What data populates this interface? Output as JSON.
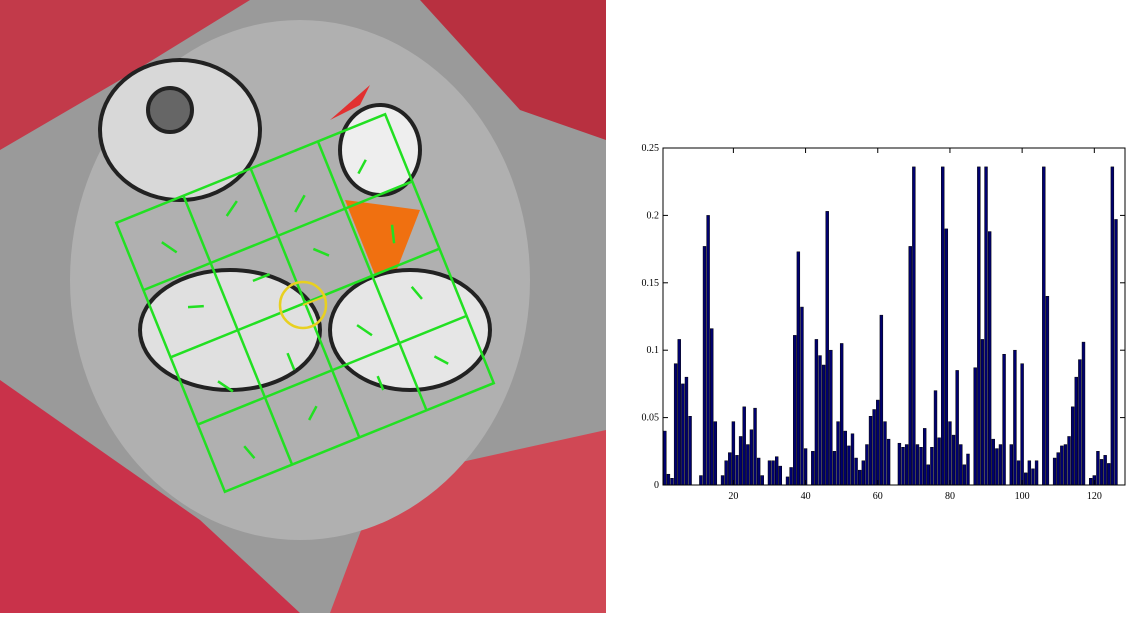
{
  "chart_data": {
    "type": "bar",
    "x": [
      1,
      2,
      3,
      4,
      5,
      6,
      7,
      8,
      9,
      10,
      11,
      12,
      13,
      14,
      15,
      16,
      17,
      18,
      19,
      20,
      21,
      22,
      23,
      24,
      25,
      26,
      27,
      28,
      29,
      30,
      31,
      32,
      33,
      34,
      35,
      36,
      37,
      38,
      39,
      40,
      41,
      42,
      43,
      44,
      45,
      46,
      47,
      48,
      49,
      50,
      51,
      52,
      53,
      54,
      55,
      56,
      57,
      58,
      59,
      60,
      61,
      62,
      63,
      64,
      65,
      66,
      67,
      68,
      69,
      70,
      71,
      72,
      73,
      74,
      75,
      76,
      77,
      78,
      79,
      80,
      81,
      82,
      83,
      84,
      85,
      86,
      87,
      88,
      89,
      90,
      91,
      92,
      93,
      94,
      95,
      96,
      97,
      98,
      99,
      100,
      101,
      102,
      103,
      104,
      105,
      106,
      107,
      108,
      109,
      110,
      111,
      112,
      113,
      114,
      115,
      116,
      117,
      118,
      119,
      120,
      121,
      122,
      123,
      124,
      125,
      126,
      127,
      128
    ],
    "values": [
      0.04,
      0.008,
      0.005,
      0.09,
      0.108,
      0.075,
      0.08,
      0.051,
      0,
      0,
      0.007,
      0.177,
      0.2,
      0.116,
      0.047,
      0,
      0.007,
      0.018,
      0.024,
      0.047,
      0.022,
      0.036,
      0.058,
      0.03,
      0.041,
      0.057,
      0.02,
      0.007,
      0,
      0.018,
      0.018,
      0.021,
      0.014,
      0,
      0.006,
      0.013,
      0.111,
      0.173,
      0.132,
      0.027,
      0,
      0.025,
      0.108,
      0.096,
      0.089,
      0.203,
      0.1,
      0.025,
      0.047,
      0.105,
      0.04,
      0.029,
      0.038,
      0.02,
      0.011,
      0.018,
      0.03,
      0.051,
      0.056,
      0.063,
      0.126,
      0.047,
      0.034,
      0,
      0,
      0.031,
      0.028,
      0.03,
      0.177,
      0.236,
      0.03,
      0.028,
      0.042,
      0.015,
      0.028,
      0.07,
      0.035,
      0.236,
      0.19,
      0.047,
      0.037,
      0.085,
      0.03,
      0.015,
      0.023,
      0,
      0.087,
      0.236,
      0.108,
      0.236,
      0.188,
      0.034,
      0.027,
      0.03,
      0.097,
      0,
      0.03,
      0.1,
      0.018,
      0.09,
      0.009,
      0.018,
      0.012,
      0.018,
      0,
      0.236,
      0.14,
      0,
      0.02,
      0.024,
      0.029,
      0.03,
      0.036,
      0.058,
      0.08,
      0.093,
      0.106,
      0,
      0.005,
      0.007,
      0.025,
      0.019,
      0.022,
      0.016,
      0.236,
      0.197,
      0,
      0
    ],
    "color": "#00006e",
    "xlim": [
      0.5,
      128.5
    ],
    "xticks": [
      20,
      40,
      60,
      80,
      100,
      120
    ],
    "ylim": [
      0,
      0.25
    ],
    "yticks": [
      0,
      0.05,
      0.1,
      0.15,
      0.2,
      0.25
    ]
  }
}
